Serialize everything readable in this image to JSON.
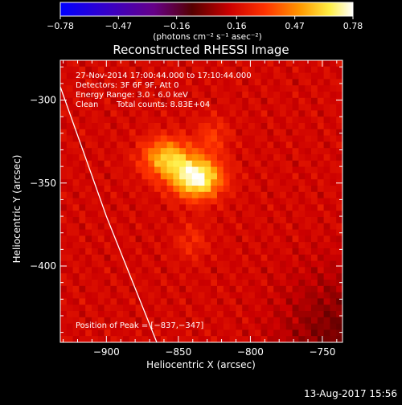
{
  "colorbar": {
    "tick_labels": [
      "−0.78",
      "−0.47",
      "−0.16",
      "0.16",
      "0.47",
      "0.78"
    ],
    "tick_values": [
      -0.78,
      -0.47,
      -0.16,
      0.16,
      0.47,
      0.78
    ],
    "unit_label": "(photons cm⁻² s⁻¹ asec⁻²)",
    "range": [
      -0.78,
      0.78
    ]
  },
  "chart_data": {
    "type": "heatmap",
    "title": "Reconstructed RHESSI Image",
    "xlabel": "Heliocentric X (arcsec)",
    "ylabel": "Heliocentric Y (arcsec)",
    "xlim": [
      -932,
      -736
    ],
    "ylim": [
      -446,
      -276
    ],
    "x_ticks": [
      -900,
      -850,
      -800,
      -750
    ],
    "x_tick_labels": [
      "−900",
      "−850",
      "−800",
      "−750"
    ],
    "y_ticks": [
      -300,
      -350,
      -400
    ],
    "y_tick_labels": [
      "−300",
      "−350",
      "−400"
    ],
    "colormap": "rhessi-blue-purple-red-yellow-white",
    "background_value": 0.15,
    "sources": [
      {
        "x": -837,
        "y": -347,
        "peak": 0.78
      },
      {
        "x": -858,
        "y": -335,
        "peak": 0.58
      },
      {
        "x": -826,
        "y": -322,
        "peak": 0.3
      },
      {
        "x": -841,
        "y": -385,
        "peak": 0.27
      }
    ],
    "limb": [
      [
        -932,
        -292
      ],
      [
        -900,
        -370
      ],
      [
        -865,
        -446
      ]
    ],
    "annotations": {
      "time_range": "27-Nov-2014 17:00:44.000 to 17:10:44.000",
      "detectors": "Detectors: 3F 6F 9F, Att 0",
      "energy_range": "Energy Range: 3.0 - 6.0 keV",
      "method": "Clean",
      "total_counts": "Total counts: 8.83E+04",
      "peak_position": "Position of Peak = [−837,−347]"
    }
  },
  "footer": {
    "timestamp": "13-Aug-2017 15:56"
  }
}
